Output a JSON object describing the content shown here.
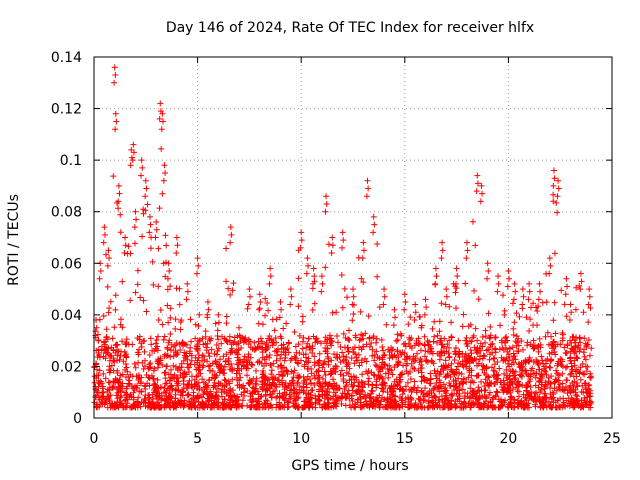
{
  "chart_data": {
    "type": "scatter",
    "title": "Day 146 of 2024, Rate Of TEC Index for receiver hlfx",
    "xlabel": "GPS time / hours",
    "ylabel": "ROTI / TECUs",
    "xlim": [
      0,
      25
    ],
    "ylim": [
      0,
      0.14
    ],
    "x_ticks": [
      0,
      5,
      10,
      15,
      20,
      25
    ],
    "x_tick_labels": [
      "0",
      "5",
      "10",
      "15",
      "20",
      "25"
    ],
    "y_ticks": [
      0,
      0.02,
      0.04,
      0.06,
      0.08,
      0.1,
      0.12,
      0.14
    ],
    "y_tick_labels": [
      "0",
      "0.02",
      "0.04",
      "0.06",
      "0.08",
      "0.1",
      "0.12",
      "0.14"
    ],
    "grid": true,
    "marker": "+",
    "marker_color": "#ff0000",
    "series": [
      {
        "name": "ROTI",
        "note": "Dense scatter of ~thousands of points; baseline ~0.005-0.03 TECU throughout the day, with representative points and peaks listed below.",
        "x": [
          0.1,
          0.3,
          0.5,
          0.7,
          1.0,
          1.05,
          1.2,
          1.5,
          1.8,
          1.9,
          2.0,
          2.3,
          2.5,
          2.7,
          3.0,
          3.2,
          3.3,
          3.4,
          3.6,
          4.0,
          4.5,
          5.0,
          5.5,
          6.0,
          6.6,
          7.0,
          7.5,
          8.0,
          8.5,
          9.0,
          9.5,
          10.0,
          10.3,
          10.6,
          11.0,
          11.2,
          11.5,
          12.0,
          12.5,
          13.0,
          13.2,
          13.5,
          14.0,
          14.5,
          15.0,
          15.5,
          16.0,
          16.5,
          16.8,
          17.0,
          17.5,
          18.0,
          18.5,
          18.7,
          19.0,
          19.5,
          20.0,
          20.3,
          20.7,
          21.0,
          21.5,
          22.0,
          22.2,
          22.4,
          22.8,
          23.0,
          23.5,
          23.9
        ],
        "y": [
          0.038,
          0.06,
          0.074,
          0.065,
          0.136,
          0.118,
          0.09,
          0.07,
          0.104,
          0.106,
          0.08,
          0.1,
          0.092,
          0.078,
          0.076,
          0.122,
          0.118,
          0.098,
          0.06,
          0.07,
          0.052,
          0.062,
          0.045,
          0.04,
          0.074,
          0.035,
          0.05,
          0.048,
          0.058,
          0.045,
          0.05,
          0.072,
          0.062,
          0.058,
          0.055,
          0.086,
          0.07,
          0.072,
          0.05,
          0.068,
          0.092,
          0.078,
          0.05,
          0.042,
          0.048,
          0.044,
          0.046,
          0.058,
          0.068,
          0.05,
          0.058,
          0.068,
          0.094,
          0.09,
          0.06,
          0.055,
          0.057,
          0.052,
          0.05,
          0.052,
          0.052,
          0.062,
          0.096,
          0.092,
          0.054,
          0.044,
          0.056,
          0.05
        ]
      }
    ]
  }
}
